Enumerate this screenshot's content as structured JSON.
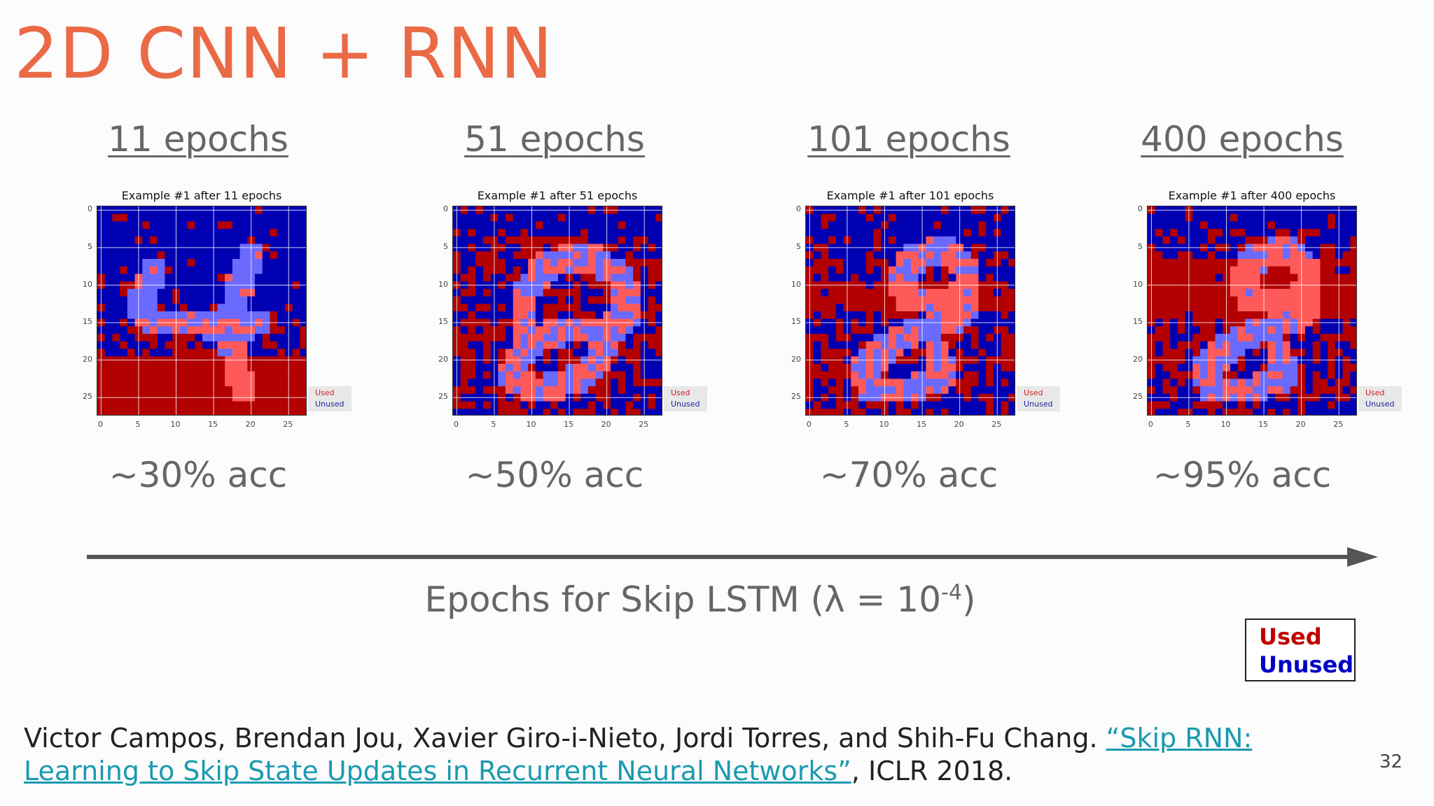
{
  "title": "2D CNN + RNN",
  "panels": [
    {
      "heading": "11 epochs",
      "plot_title": "Example #1 after 11 epochs",
      "accuracy": "~30% acc"
    },
    {
      "heading": "51 epochs",
      "plot_title": "Example #1 after 51 epochs",
      "accuracy": "~50% acc"
    },
    {
      "heading": "101 epochs",
      "plot_title": "Example #1 after 101 epochs",
      "accuracy": "~70% acc"
    },
    {
      "heading": "400 epochs",
      "plot_title": "Example #1 after 400 epochs",
      "accuracy": "~95% acc"
    }
  ],
  "y_ticks": [
    "0",
    "5",
    "10",
    "15",
    "20",
    "25"
  ],
  "x_ticks": [
    "0",
    "5",
    "10",
    "15",
    "20",
    "25"
  ],
  "mini_legend": {
    "used": "Used",
    "unused": "Unused"
  },
  "axis": {
    "label": "Epochs for Skip LSTM (λ = 10",
    "exponent": "-4",
    "close": ")"
  },
  "legend": {
    "used": "Used",
    "unused": "Unused"
  },
  "colors": {
    "used": "#b30000",
    "unused": "#0000b3",
    "title": "#ea6a46",
    "link": "#1a9ab0"
  },
  "citation": {
    "authors": "Victor Campos, Brendan Jou, Xavier Giro-i-Nieto, Jordi Torres, and Shih-Fu Chang. ",
    "link_text": "“Skip RNN: Learning to Skip State Updates in Recurrent Neural Networks”",
    "venue": ", ICLR 2018."
  },
  "page_number": "32"
}
